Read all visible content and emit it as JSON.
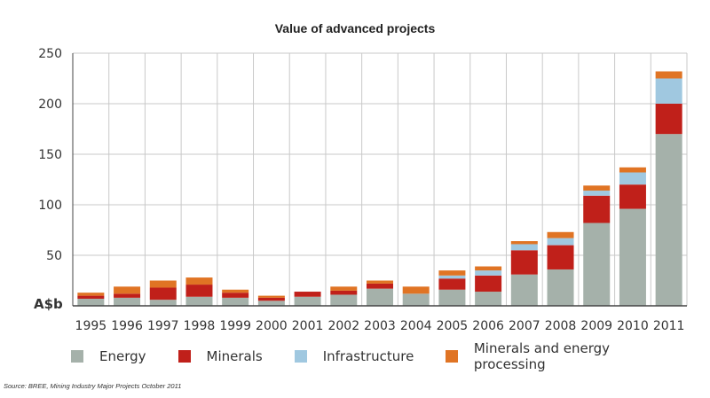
{
  "chart_data": {
    "type": "bar",
    "stacked": true,
    "title": "Value of advanced projects",
    "ylabel": "A$b",
    "ylim": [
      0,
      250
    ],
    "yticks": [
      50,
      100,
      150,
      200,
      250
    ],
    "categories": [
      "1995",
      "1996",
      "1997",
      "1998",
      "1999",
      "2000",
      "2001",
      "2002",
      "2003",
      "2004",
      "2005",
      "2006",
      "2007",
      "2008",
      "2009",
      "2010",
      "2011"
    ],
    "series": [
      {
        "name": "Energy",
        "color": "#a5b1aa",
        "values": [
          7,
          8,
          6,
          9,
          8,
          5,
          9,
          11,
          17,
          12,
          16,
          14,
          31,
          36,
          82,
          96,
          170
        ]
      },
      {
        "name": "Minerals",
        "color": "#c0201a",
        "values": [
          3,
          4,
          12,
          12,
          5,
          3,
          5,
          4,
          5,
          0,
          11,
          16,
          24,
          24,
          27,
          24,
          30
        ]
      },
      {
        "name": "Infrastructure",
        "color": "#a0c8e0",
        "values": [
          0,
          0,
          0,
          0,
          0,
          0,
          0,
          0,
          0,
          0,
          3,
          5,
          6,
          7,
          5,
          12,
          25
        ]
      },
      {
        "name": "Minerals and energy processing",
        "color": "#e07424",
        "values": [
          3,
          7,
          7,
          7,
          3,
          2,
          0,
          4,
          3,
          7,
          5,
          4,
          3,
          6,
          5,
          5,
          7
        ]
      }
    ],
    "grid": true,
    "legend_position": "bottom"
  },
  "source": "Source:  BREE, Mining Industry Major Projects October 2011"
}
